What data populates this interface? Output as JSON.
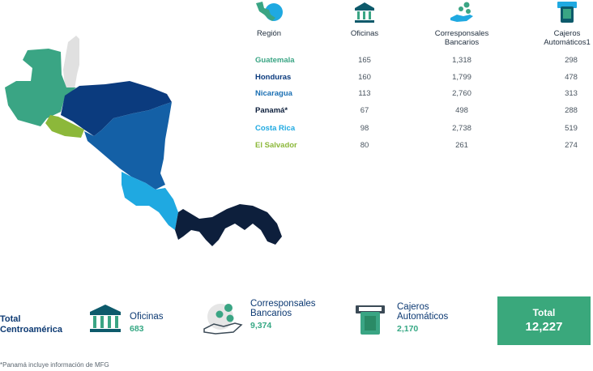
{
  "colors": {
    "guatemala": "#3aa584",
    "honduras": "#0b3b7e",
    "nicaragua": "#1460a6",
    "panama": "#0d1f3c",
    "costa_rica": "#1fa9e1",
    "el_salvador": "#8cb83a",
    "mexico_gray": "#e0e0e0",
    "accent": "#3aa87c"
  },
  "table": {
    "headers": {
      "region": "Región",
      "oficinas": "Oficinas",
      "corresponsales_1": "Corresponsales",
      "corresponsales_2": "Bancarios",
      "cajeros_1": "Cajeros",
      "cajeros_2": "Automáticos1"
    },
    "rows": [
      {
        "name": "Guatemala",
        "color": "#3aa584",
        "oficinas": "165",
        "corresponsales": "1,318",
        "cajeros": "298"
      },
      {
        "name": "Honduras",
        "color": "#0b3b7e",
        "oficinas": "160",
        "corresponsales": "1,799",
        "cajeros": "478"
      },
      {
        "name": "Nicaragua",
        "color": "#1a6fb3",
        "oficinas": "113",
        "corresponsales": "2,760",
        "cajeros": "313"
      },
      {
        "name": "Panamá*",
        "color": "#0d1f3c",
        "oficinas": "67",
        "corresponsales": "498",
        "cajeros": "288"
      },
      {
        "name": "Costa Rica",
        "color": "#1fa9e1",
        "oficinas": "98",
        "corresponsales": "2,738",
        "cajeros": "519"
      },
      {
        "name": "El Salvador",
        "color": "#8cb83a",
        "oficinas": "80",
        "corresponsales": "261",
        "cajeros": "274"
      }
    ]
  },
  "totals": {
    "label_1": "Total",
    "label_2": "Centroamérica",
    "oficinas_label": "Oficinas",
    "oficinas_value": "683",
    "corresponsales_label_1": "Corresponsales",
    "corresponsales_label_2": "Bancarios",
    "corresponsales_value": "9,374",
    "cajeros_label_1": "Cajeros",
    "cajeros_label_2": "Automáticos",
    "cajeros_value": "2,170",
    "total_label": "Total",
    "total_value": "12,227"
  },
  "footnote": "*Panamá incluye información de MFG"
}
